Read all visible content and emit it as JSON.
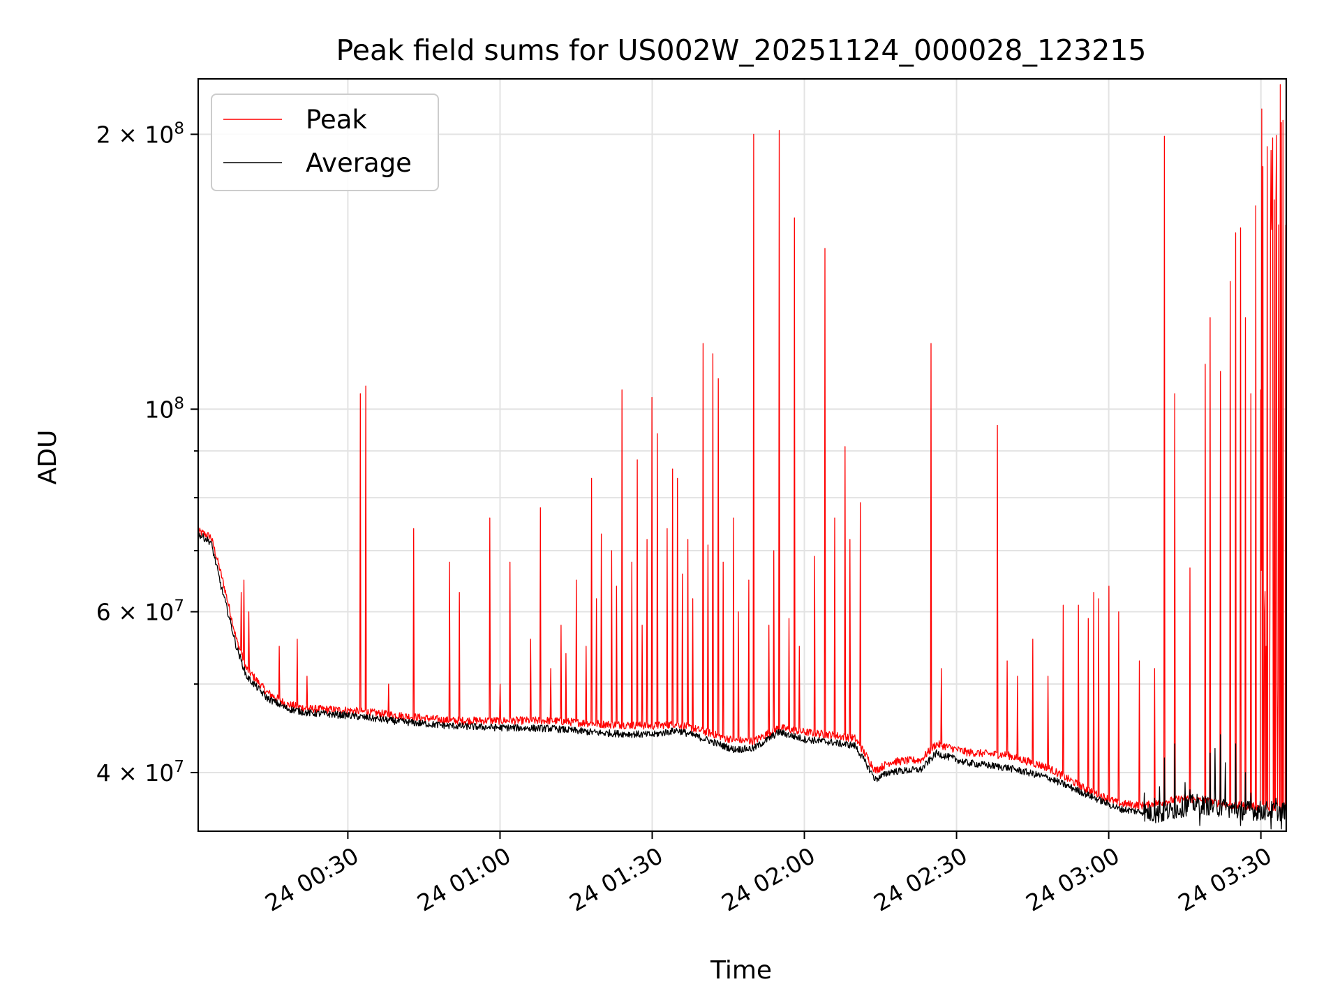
{
  "chart_data": {
    "type": "line",
    "title": "Peak field sums for US002W_20251124_000028_123215",
    "xlabel": "Time",
    "ylabel": "ADU",
    "x_unit": "minutes after 24 00:00",
    "xlim": [
      0.5,
      215
    ],
    "ylim": [
      34500000,
      230000000
    ],
    "yscale": "log",
    "grid": true,
    "legend_position": "upper-left",
    "x_ticks": [
      {
        "value": 30,
        "label": "24 00:30"
      },
      {
        "value": 60,
        "label": "24 01:00"
      },
      {
        "value": 90,
        "label": "24 01:30"
      },
      {
        "value": 120,
        "label": "24 02:00"
      },
      {
        "value": 150,
        "label": "24 02:30"
      },
      {
        "value": 180,
        "label": "24 03:00"
      },
      {
        "value": 210,
        "label": "24 03:30"
      }
    ],
    "y_major_ticks": [
      {
        "value": 40000000,
        "mantissa": "4",
        "exponent": "7"
      },
      {
        "value": 60000000,
        "mantissa": "6",
        "exponent": "7"
      },
      {
        "value": 100000000,
        "mantissa": "",
        "exponent": "8"
      },
      {
        "value": 200000000,
        "mantissa": "2",
        "exponent": "8"
      }
    ],
    "y_minor_ticks": [
      50000000,
      70000000,
      80000000,
      90000000
    ],
    "series": [
      {
        "name": "Peak",
        "color": "#ff0000",
        "baseline": [
          [
            0.5,
            73.5
          ],
          [
            3,
            72.5
          ],
          [
            5,
            66
          ],
          [
            8,
            56
          ],
          [
            10,
            52
          ],
          [
            14,
            49
          ],
          [
            18,
            47.5
          ],
          [
            22,
            47
          ],
          [
            30,
            46.8
          ],
          [
            40,
            46.2
          ],
          [
            50,
            45.6
          ],
          [
            60,
            45.6
          ],
          [
            70,
            45.6
          ],
          [
            80,
            45.2
          ],
          [
            90,
            45
          ],
          [
            95,
            45.2
          ],
          [
            100,
            44.4
          ],
          [
            106,
            43.4
          ],
          [
            110,
            43.3
          ],
          [
            115,
            44.8
          ],
          [
            120,
            44.3
          ],
          [
            125,
            44
          ],
          [
            130,
            43.6
          ],
          [
            134,
            40.2
          ],
          [
            137,
            41.1
          ],
          [
            143,
            41.3
          ],
          [
            146,
            43
          ],
          [
            152,
            42.1
          ],
          [
            160,
            41.8
          ],
          [
            168,
            40.5
          ],
          [
            175,
            38.5
          ],
          [
            182,
            37
          ],
          [
            187,
            36.8
          ],
          [
            195,
            37.5
          ],
          [
            205,
            36.8
          ],
          [
            214.5,
            36.6
          ]
        ],
        "spikes": [
          [
            9,
            63
          ],
          [
            9.5,
            65
          ],
          [
            10.5,
            60
          ],
          [
            16.5,
            55
          ],
          [
            20,
            56
          ],
          [
            22,
            51
          ],
          [
            32.5,
            104
          ],
          [
            33.5,
            106
          ],
          [
            38,
            50
          ],
          [
            43,
            74
          ],
          [
            50,
            68
          ],
          [
            52,
            63
          ],
          [
            58,
            76
          ],
          [
            60,
            50
          ],
          [
            62,
            68
          ],
          [
            66,
            56
          ],
          [
            68,
            78
          ],
          [
            70,
            52
          ],
          [
            72,
            58
          ],
          [
            73,
            54
          ],
          [
            75,
            65
          ],
          [
            77,
            55
          ],
          [
            78,
            84
          ],
          [
            79,
            62
          ],
          [
            80,
            73
          ],
          [
            82,
            70
          ],
          [
            83,
            64
          ],
          [
            84,
            105
          ],
          [
            86,
            68
          ],
          [
            87,
            88
          ],
          [
            88,
            58
          ],
          [
            89,
            72
          ],
          [
            90,
            103
          ],
          [
            91,
            94
          ],
          [
            93,
            74
          ],
          [
            94,
            86
          ],
          [
            95,
            84
          ],
          [
            96,
            66
          ],
          [
            97,
            72
          ],
          [
            98,
            62
          ],
          [
            100,
            118
          ],
          [
            101,
            71
          ],
          [
            102,
            115
          ],
          [
            103,
            108
          ],
          [
            104,
            68
          ],
          [
            106,
            76
          ],
          [
            107,
            60
          ],
          [
            109,
            65
          ],
          [
            110,
            200
          ],
          [
            113,
            58
          ],
          [
            114,
            70
          ],
          [
            115,
            202
          ],
          [
            117,
            59
          ],
          [
            118,
            162
          ],
          [
            119,
            55
          ],
          [
            122,
            69
          ],
          [
            124,
            150
          ],
          [
            126,
            76
          ],
          [
            128,
            91
          ],
          [
            129,
            72
          ],
          [
            131,
            79
          ],
          [
            145,
            118
          ],
          [
            147,
            52
          ],
          [
            158,
            96
          ],
          [
            160,
            53
          ],
          [
            162,
            51
          ],
          [
            165,
            56
          ],
          [
            168,
            51
          ],
          [
            171,
            61
          ],
          [
            174,
            61
          ],
          [
            176,
            59
          ],
          [
            177,
            63
          ],
          [
            178,
            62
          ],
          [
            180,
            64
          ],
          [
            182,
            60
          ],
          [
            186,
            53
          ],
          [
            189,
            52
          ],
          [
            191,
            199
          ],
          [
            193,
            104
          ],
          [
            196,
            67
          ],
          [
            199,
            112
          ],
          [
            200,
            126
          ],
          [
            202,
            110
          ],
          [
            204,
            138
          ],
          [
            205,
            156
          ],
          [
            206,
            158
          ],
          [
            207,
            126
          ],
          [
            208,
            104
          ],
          [
            209,
            167
          ],
          [
            210,
            105
          ],
          [
            211,
            55
          ],
          [
            212,
            120
          ],
          [
            213,
            168
          ],
          [
            214,
            206
          ]
        ],
        "noisy_from": 210,
        "noisy_high": [
          150,
          230
        ],
        "noisy_low": [
          38,
          70
        ]
      },
      {
        "name": "Average",
        "color": "#000000",
        "baseline": [
          [
            0.5,
            73
          ],
          [
            3,
            71.5
          ],
          [
            5,
            64
          ],
          [
            8,
            55
          ],
          [
            10,
            51
          ],
          [
            14,
            48.3
          ],
          [
            18,
            47
          ],
          [
            22,
            46.5
          ],
          [
            30,
            46.2
          ],
          [
            40,
            45.5
          ],
          [
            50,
            45
          ],
          [
            60,
            44.8
          ],
          [
            70,
            44.7
          ],
          [
            80,
            44.2
          ],
          [
            90,
            44
          ],
          [
            95,
            44.5
          ],
          [
            100,
            43.6
          ],
          [
            106,
            42.4
          ],
          [
            110,
            42.5
          ],
          [
            115,
            44.3
          ],
          [
            120,
            43.5
          ],
          [
            125,
            43.2
          ],
          [
            130,
            42.8
          ],
          [
            134,
            39.3
          ],
          [
            137,
            40.1
          ],
          [
            143,
            40.3
          ],
          [
            146,
            42
          ],
          [
            152,
            41
          ],
          [
            160,
            40.5
          ],
          [
            168,
            39.5
          ],
          [
            175,
            38
          ],
          [
            182,
            36.5
          ],
          [
            190,
            36
          ],
          [
            197,
            37
          ],
          [
            205,
            36.4
          ],
          [
            214.5,
            36.3
          ]
        ],
        "bumps": [
          [
            187,
            38
          ],
          [
            189,
            37.5
          ],
          [
            190,
            38.6
          ],
          [
            191,
            41.5
          ],
          [
            193,
            43
          ],
          [
            195,
            39
          ],
          [
            196,
            38.3
          ],
          [
            198,
            40.5
          ],
          [
            200,
            42
          ],
          [
            201,
            42.5
          ],
          [
            202,
            44
          ],
          [
            203,
            41
          ],
          [
            205,
            43
          ],
          [
            206,
            39.5
          ],
          [
            207,
            40
          ],
          [
            208,
            38
          ],
          [
            211,
            37
          ],
          [
            213,
            37.5
          ]
        ],
        "dips": [
          [
            198,
            35
          ],
          [
            206,
            35
          ],
          [
            210,
            35.5
          ],
          [
            212,
            34.7
          ],
          [
            214,
            34.7
          ]
        ],
        "noisy_from": 187
      }
    ]
  }
}
